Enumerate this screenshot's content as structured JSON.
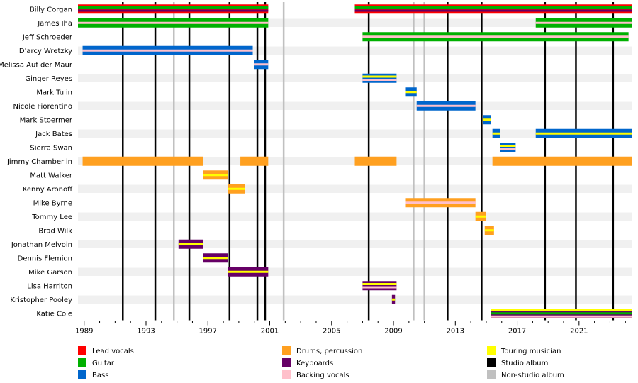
{
  "chart_data": {
    "type": "timeline",
    "title": "",
    "xlabel": "",
    "ylabel": "",
    "x_range": [
      1988.6,
      2024.4
    ],
    "x_ticks": [
      1989,
      1993,
      1997,
      2001,
      2005,
      2009,
      2013,
      2017,
      2021
    ],
    "grid": true,
    "legend_position": "bottom",
    "members": [
      "Billy Corgan",
      "James Iha",
      "Jeff Schroeder",
      "D'arcy Wretzky",
      "Melissa Auf der Maur",
      "Ginger Reyes",
      "Mark Tulin",
      "Nicole Fiorentino",
      "Mark Stoermer",
      "Jack Bates",
      "Sierra Swan",
      "Jimmy Chamberlin",
      "Matt Walker",
      "Kenny Aronoff",
      "Mike Byrne",
      "Tommy Lee",
      "Brad Wilk",
      "Jonathan Melvoin",
      "Dennis Flemion",
      "Mike Garson",
      "Lisa Harriton",
      "Kristopher Pooley",
      "Katie Cole"
    ],
    "roles": [
      {
        "key": "lead_vocals",
        "label": "Lead vocals",
        "color": "#ff0000"
      },
      {
        "key": "guitar",
        "label": "Guitar",
        "color": "#00b000"
      },
      {
        "key": "bass",
        "label": "Bass",
        "color": "#0066cc"
      },
      {
        "key": "drums",
        "label": "Drums, percussion",
        "color": "#ffa020"
      },
      {
        "key": "keyboards",
        "label": "Keyboards",
        "color": "#660066"
      },
      {
        "key": "backing_vocals",
        "label": "Backing vocals",
        "color": "#ffc0cb"
      },
      {
        "key": "touring",
        "label": "Touring musician",
        "color": "#ffff00"
      },
      {
        "key": "studio_album",
        "label": "Studio album",
        "color": "#000000"
      },
      {
        "key": "non_studio_album",
        "label": "Non-studio album",
        "color": "#c0c0c0"
      }
    ],
    "studio_albums": [
      1991.5,
      1993.6,
      1995.8,
      1998.4,
      2000.2,
      2000.7,
      2007.4,
      2012.5,
      2014.7,
      2018.8,
      2020.8,
      2023.2
    ],
    "non_studio_albums": [
      1994.8,
      2001.9,
      2010.3,
      2011.0
    ],
    "bars": [
      {
        "member": "Billy Corgan",
        "start": 1988.6,
        "end": 2000.9,
        "main": "#ff0000",
        "stripes": [
          "#00b000",
          "#660066"
        ]
      },
      {
        "member": "Billy Corgan",
        "start": 2006.5,
        "end": 2024.4,
        "main": "#ff0000",
        "stripes": [
          "#00b000",
          "#660066"
        ]
      },
      {
        "member": "James Iha",
        "start": 1988.6,
        "end": 2000.9,
        "main": "#00b000",
        "stripes": [
          "#ffc0cb"
        ]
      },
      {
        "member": "James Iha",
        "start": 2018.2,
        "end": 2024.4,
        "main": "#00b000",
        "stripes": [
          "#ffc0cb"
        ]
      },
      {
        "member": "Jeff Schroeder",
        "start": 2007.0,
        "end": 2024.2,
        "main": "#00b000",
        "stripes": [
          "#ffc0cb"
        ]
      },
      {
        "member": "D'arcy Wretzky",
        "start": 1988.9,
        "end": 1999.9,
        "main": "#0066cc",
        "stripes": [
          "#ffc0cb"
        ]
      },
      {
        "member": "Melissa Auf der Maur",
        "start": 2000.0,
        "end": 2000.9,
        "main": "#0066cc",
        "stripes": [
          "#ffc0cb"
        ]
      },
      {
        "member": "Ginger Reyes",
        "start": 2007.0,
        "end": 2009.2,
        "main": "#0066cc",
        "stripes": [
          "#ffc0cb"
        ],
        "touring": true
      },
      {
        "member": "Mark Tulin",
        "start": 2009.8,
        "end": 2010.5,
        "main": "#0066cc",
        "stripes": [],
        "touring": true
      },
      {
        "member": "Nicole Fiorentino",
        "start": 2010.5,
        "end": 2014.3,
        "main": "#0066cc",
        "stripes": [
          "#ffc0cb"
        ]
      },
      {
        "member": "Mark Stoermer",
        "start": 2014.8,
        "end": 2015.3,
        "main": "#0066cc",
        "stripes": [],
        "touring": true
      },
      {
        "member": "Jack Bates",
        "start": 2015.4,
        "end": 2015.9,
        "main": "#0066cc",
        "stripes": [],
        "touring": true
      },
      {
        "member": "Jack Bates",
        "start": 2018.2,
        "end": 2024.4,
        "main": "#0066cc",
        "stripes": [],
        "touring": true
      },
      {
        "member": "Sierra Swan",
        "start": 2015.9,
        "end": 2016.9,
        "main": "#0066cc",
        "stripes": [
          "#ffc0cb"
        ],
        "touring": true
      },
      {
        "member": "Jimmy Chamberlin",
        "start": 1988.9,
        "end": 1996.7,
        "main": "#ffa020",
        "stripes": []
      },
      {
        "member": "Jimmy Chamberlin",
        "start": 1999.1,
        "end": 2000.9,
        "main": "#ffa020",
        "stripes": []
      },
      {
        "member": "Jimmy Chamberlin",
        "start": 2006.5,
        "end": 2009.2,
        "main": "#ffa020",
        "stripes": []
      },
      {
        "member": "Jimmy Chamberlin",
        "start": 2015.4,
        "end": 2024.4,
        "main": "#ffa020",
        "stripes": []
      },
      {
        "member": "Matt Walker",
        "start": 1996.7,
        "end": 1998.3,
        "main": "#ffa020",
        "stripes": [],
        "touring": true
      },
      {
        "member": "Kenny Aronoff",
        "start": 1998.3,
        "end": 1999.4,
        "main": "#ffa020",
        "stripes": [],
        "touring": true
      },
      {
        "member": "Mike Byrne",
        "start": 2009.8,
        "end": 2014.3,
        "main": "#ffa020",
        "stripes": [
          "#ffc0cb"
        ]
      },
      {
        "member": "Tommy Lee",
        "start": 2014.3,
        "end": 2015.0,
        "main": "#ffa020",
        "stripes": [],
        "touring": true
      },
      {
        "member": "Brad Wilk",
        "start": 2014.9,
        "end": 2015.5,
        "main": "#ffa020",
        "stripes": [],
        "touring": true
      },
      {
        "member": "Jonathan Melvoin",
        "start": 1995.1,
        "end": 1996.7,
        "main": "#660066",
        "stripes": [],
        "touring": true
      },
      {
        "member": "Dennis Flemion",
        "start": 1996.7,
        "end": 1998.3,
        "main": "#660066",
        "stripes": [],
        "touring": true
      },
      {
        "member": "Mike Garson",
        "start": 1998.3,
        "end": 2000.9,
        "main": "#660066",
        "stripes": [],
        "touring": true
      },
      {
        "member": "Lisa Harriton",
        "start": 2007.0,
        "end": 2009.2,
        "main": "#660066",
        "stripes": [
          "#ffc0cb"
        ],
        "touring": true
      },
      {
        "member": "Kristopher Pooley",
        "start": 2008.9,
        "end": 2009.1,
        "main": "#660066",
        "stripes": [],
        "touring": true
      },
      {
        "member": "Katie Cole",
        "start": 2015.3,
        "end": 2024.4,
        "main": "#660066",
        "stripes": [
          "#00b000",
          "#ffc0cb"
        ],
        "touring": true
      }
    ]
  }
}
